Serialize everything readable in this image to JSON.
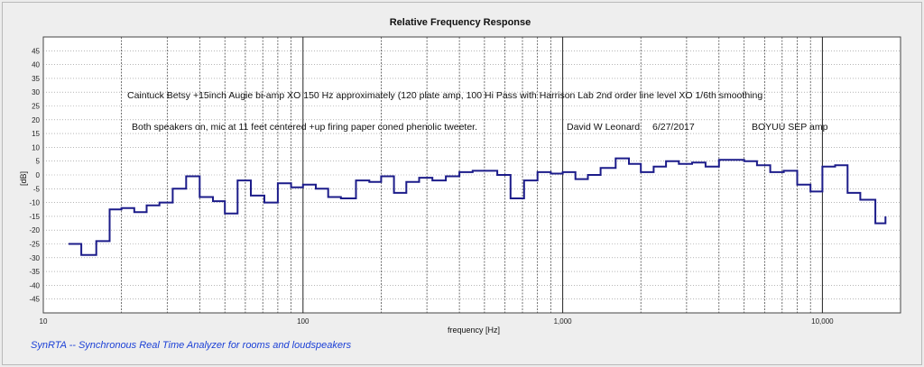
{
  "chart_data": {
    "type": "line",
    "title": "Relative Frequency Response",
    "xlabel": "frequency [Hz]",
    "ylabel": "[dB]",
    "x_scale": "log",
    "xlim": [
      10,
      20000
    ],
    "ylim": [
      -50,
      50
    ],
    "y_ticks": [
      45,
      40,
      35,
      30,
      25,
      20,
      15,
      10,
      5,
      0,
      -5,
      -10,
      -15,
      -20,
      -25,
      -30,
      -35,
      -40,
      -45
    ],
    "x_tick_labels": [
      {
        "value": 10,
        "label": "10"
      },
      {
        "value": 100,
        "label": "100"
      },
      {
        "value": 1000,
        "label": "1,000"
      },
      {
        "value": 10000,
        "label": "10,000"
      }
    ],
    "grid": true,
    "line_color": "#1c1c8a",
    "series": [
      {
        "name": "",
        "steps": [
          {
            "f1": 12.5,
            "f2": 14,
            "db": -25
          },
          {
            "f1": 14,
            "f2": 16,
            "db": -29
          },
          {
            "f1": 16,
            "f2": 18,
            "db": -24
          },
          {
            "f1": 18,
            "f2": 20,
            "db": -12.5
          },
          {
            "f1": 20,
            "f2": 22.4,
            "db": -12
          },
          {
            "f1": 22.4,
            "f2": 25,
            "db": -13.5
          },
          {
            "f1": 25,
            "f2": 28,
            "db": -11
          },
          {
            "f1": 28,
            "f2": 31.5,
            "db": -10
          },
          {
            "f1": 31.5,
            "f2": 35.5,
            "db": -5
          },
          {
            "f1": 35.5,
            "f2": 40,
            "db": -0.5
          },
          {
            "f1": 40,
            "f2": 45,
            "db": -8
          },
          {
            "f1": 45,
            "f2": 50,
            "db": -9.5
          },
          {
            "f1": 50,
            "f2": 56,
            "db": -14
          },
          {
            "f1": 56,
            "f2": 63,
            "db": -2
          },
          {
            "f1": 63,
            "f2": 71,
            "db": -7.5
          },
          {
            "f1": 71,
            "f2": 80,
            "db": -10
          },
          {
            "f1": 80,
            "f2": 90,
            "db": -3
          },
          {
            "f1": 90,
            "f2": 100,
            "db": -4.5
          },
          {
            "f1": 100,
            "f2": 112,
            "db": -3.5
          },
          {
            "f1": 112,
            "f2": 125,
            "db": -5
          },
          {
            "f1": 125,
            "f2": 140,
            "db": -8
          },
          {
            "f1": 140,
            "f2": 160,
            "db": -8.5
          },
          {
            "f1": 160,
            "f2": 180,
            "db": -2
          },
          {
            "f1": 180,
            "f2": 200,
            "db": -2.5
          },
          {
            "f1": 200,
            "f2": 224,
            "db": -0.5
          },
          {
            "f1": 224,
            "f2": 250,
            "db": -6.5
          },
          {
            "f1": 250,
            "f2": 280,
            "db": -2.5
          },
          {
            "f1": 280,
            "f2": 315,
            "db": -1
          },
          {
            "f1": 315,
            "f2": 355,
            "db": -2
          },
          {
            "f1": 355,
            "f2": 400,
            "db": -0.5
          },
          {
            "f1": 400,
            "f2": 450,
            "db": 1
          },
          {
            "f1": 450,
            "f2": 500,
            "db": 1.5
          },
          {
            "f1": 500,
            "f2": 560,
            "db": 1.5
          },
          {
            "f1": 560,
            "f2": 630,
            "db": 0
          },
          {
            "f1": 630,
            "f2": 710,
            "db": -8.5
          },
          {
            "f1": 710,
            "f2": 800,
            "db": -2
          },
          {
            "f1": 800,
            "f2": 900,
            "db": 1
          },
          {
            "f1": 900,
            "f2": 1000,
            "db": 0.5
          },
          {
            "f1": 1000,
            "f2": 1120,
            "db": 1
          },
          {
            "f1": 1120,
            "f2": 1250,
            "db": -1.5
          },
          {
            "f1": 1250,
            "f2": 1400,
            "db": 0
          },
          {
            "f1": 1400,
            "f2": 1600,
            "db": 2.5
          },
          {
            "f1": 1600,
            "f2": 1800,
            "db": 6
          },
          {
            "f1": 1800,
            "f2": 2000,
            "db": 4
          },
          {
            "f1": 2000,
            "f2": 2240,
            "db": 1
          },
          {
            "f1": 2240,
            "f2": 2500,
            "db": 3
          },
          {
            "f1": 2500,
            "f2": 2800,
            "db": 5
          },
          {
            "f1": 2800,
            "f2": 3150,
            "db": 4
          },
          {
            "f1": 3150,
            "f2": 3550,
            "db": 4.5
          },
          {
            "f1": 3550,
            "f2": 4000,
            "db": 3
          },
          {
            "f1": 4000,
            "f2": 4500,
            "db": 5.5
          },
          {
            "f1": 4500,
            "f2": 5000,
            "db": 5.5
          },
          {
            "f1": 5000,
            "f2": 5600,
            "db": 5
          },
          {
            "f1": 5600,
            "f2": 6300,
            "db": 3.5
          },
          {
            "f1": 6300,
            "f2": 7100,
            "db": 1
          },
          {
            "f1": 7100,
            "f2": 8000,
            "db": 1.5
          },
          {
            "f1": 8000,
            "f2": 9000,
            "db": -3.5
          },
          {
            "f1": 9000,
            "f2": 10000,
            "db": -6
          },
          {
            "f1": 10000,
            "f2": 11200,
            "db": 3
          },
          {
            "f1": 11200,
            "f2": 12500,
            "db": 3.5
          },
          {
            "f1": 12500,
            "f2": 14000,
            "db": -6.5
          },
          {
            "f1": 14000,
            "f2": 16000,
            "db": -9
          },
          {
            "f1": 16000,
            "f2": 17500,
            "db": -17.5
          }
        ],
        "tail_db": -15
      }
    ],
    "annotations": [
      {
        "id": "note1",
        "text": "Caintuck Betsy +15inch Augie bi-amp XO 150 Hz approximately (120 plate amp, 100 Hi Pass with Harrison Lab 2nd order line level XO 1/6th smoothing"
      },
      {
        "id": "note2",
        "text": "Both speakers on, mic at 11 feet centered  +up firing paper coned phenolic tweeter."
      },
      {
        "id": "note3",
        "text": "David W Leonard"
      },
      {
        "id": "note4",
        "text": "6/27/2017"
      },
      {
        "id": "note5",
        "text": "BOYUU SEP amp"
      }
    ]
  },
  "footer": {
    "text": "SynRTA -- Synchronous Real Time Analyzer for rooms and loudspeakers"
  }
}
